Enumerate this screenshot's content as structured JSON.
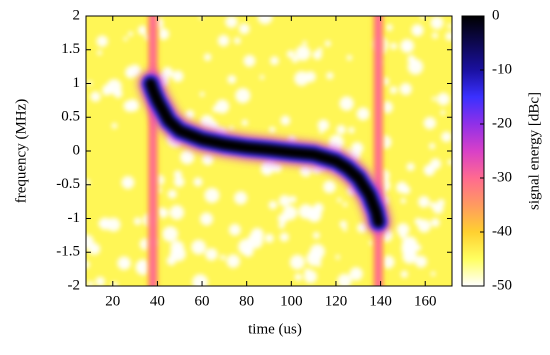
{
  "chart_data": {
    "type": "spectrogram",
    "xlabel": "time (us)",
    "ylabel": "frequency (MHz)",
    "colorbar_label": "signal energy [dBc]",
    "xlim": [
      8,
      172
    ],
    "xticks": [
      20,
      40,
      60,
      80,
      100,
      120,
      140,
      160
    ],
    "ylim": [
      -2,
      2
    ],
    "yticks": [
      -2,
      -1.5,
      -1,
      -0.5,
      0,
      0.5,
      1,
      1.5,
      2
    ],
    "clim": [
      -50,
      0
    ],
    "cticks": [
      -50,
      -40,
      -30,
      -20,
      -10,
      0
    ],
    "colormap": [
      {
        "value": -50,
        "color": "#ffffff"
      },
      {
        "value": -45,
        "color": "#ffff60"
      },
      {
        "value": -40,
        "color": "#ffd030"
      },
      {
        "value": -35,
        "color": "#ff9a60"
      },
      {
        "value": -30,
        "color": "#ff6a90"
      },
      {
        "value": -25,
        "color": "#d840c8"
      },
      {
        "value": -20,
        "color": "#9030e8"
      },
      {
        "value": -15,
        "color": "#3a30ff"
      },
      {
        "value": -10,
        "color": "#1a10a0"
      },
      {
        "value": 0,
        "color": "#000000"
      }
    ],
    "noise_floor": -44,
    "trace": {
      "x": [
        37,
        38,
        40,
        45,
        50,
        60,
        70,
        80,
        90,
        100,
        110,
        120,
        125,
        130,
        135,
        138,
        139
      ],
      "y": [
        1.0,
        0.9,
        0.75,
        0.45,
        0.3,
        0.17,
        0.1,
        0.05,
        0.02,
        -0.02,
        -0.05,
        -0.15,
        -0.25,
        -0.4,
        -0.65,
        -0.9,
        -1.05
      ],
      "level": 0
    },
    "edges": {
      "x": [
        38,
        139
      ],
      "level": -30
    }
  }
}
